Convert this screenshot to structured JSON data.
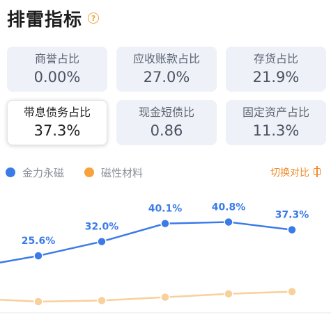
{
  "header": {
    "title": "排雷指标",
    "help_icon": "question-icon"
  },
  "metrics": [
    {
      "label": "商誉占比",
      "value": "0.00%",
      "active": false
    },
    {
      "label": "应收账款占比",
      "value": "27.0%",
      "active": false
    },
    {
      "label": "存货占比",
      "value": "21.9%",
      "active": false
    },
    {
      "label": "带息债务占比",
      "value": "37.3%",
      "active": true
    },
    {
      "label": "现金短债比",
      "value": "0.86",
      "active": false
    },
    {
      "label": "固定资产占比",
      "value": "11.3%",
      "active": false
    }
  ],
  "legend": {
    "items": [
      {
        "label": "金力永磁",
        "color": "#3b7be8"
      },
      {
        "label": "磁性材料",
        "color": "#f7a23b"
      }
    ],
    "switch_label": "切换对比",
    "switch_icon": "compare-icon"
  },
  "chart_data": {
    "type": "line",
    "series": [
      {
        "name": "金力永磁",
        "color": "#3b7be8",
        "values": [
          22.0,
          25.6,
          32.0,
          40.1,
          40.8,
          37.3
        ],
        "labels": [
          "",
          "25.6%",
          "32.0%",
          "40.1%",
          "40.8%",
          "37.3%"
        ]
      },
      {
        "name": "磁性材料",
        "color": "#f9cf9a",
        "values": [
          6.0,
          5.0,
          5.5,
          7.0,
          8.5,
          9.5
        ],
        "labels": [
          "",
          "",
          "",
          "",
          "",
          ""
        ]
      }
    ],
    "ylim": [
      0,
      50
    ]
  }
}
